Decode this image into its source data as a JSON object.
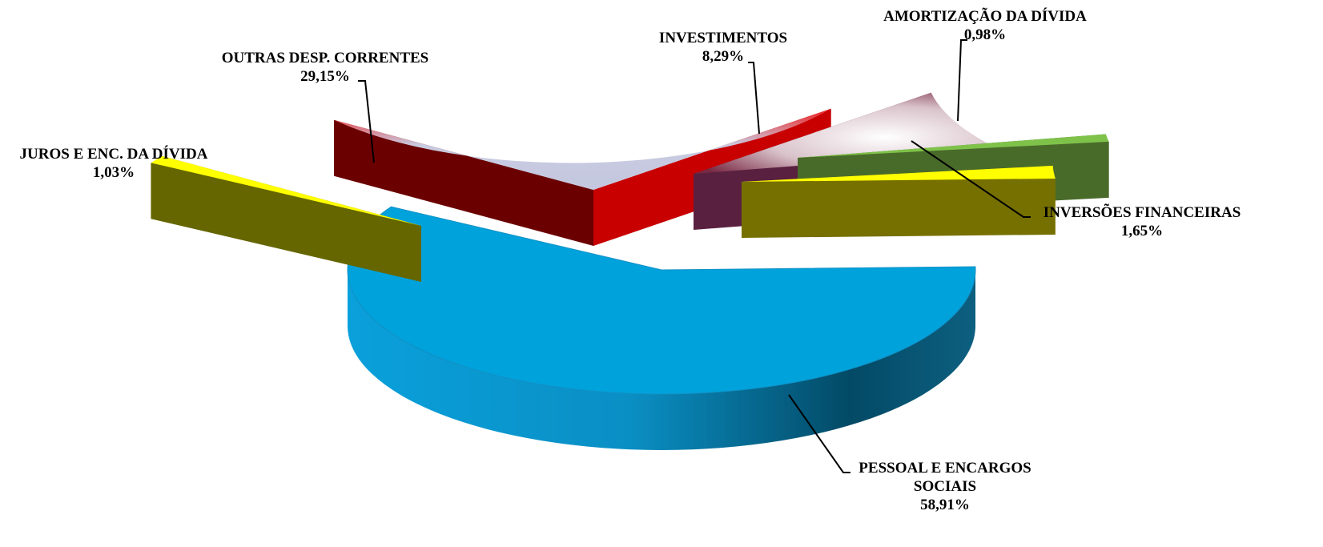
{
  "chart_data": {
    "type": "pie",
    "style": "3d-exploded",
    "slices": [
      {
        "label": "PESSOAL E ENCARGOS SOCIAIS",
        "label_lines": [
          "PESSOAL E ENCARGOS",
          "SOCIAIS"
        ],
        "value_text": "58,91%",
        "value": 58.91,
        "color": "#00a2dc"
      },
      {
        "label": "JUROS E ENC. DA DÍVIDA",
        "label_lines": [
          "JUROS E ENC. DA DÍVIDA"
        ],
        "value_text": "1,03%",
        "value": 1.03,
        "color": "#ffff00"
      },
      {
        "label": "OUTRAS DESP. CORRENTES",
        "label_lines": [
          "OUTRAS DESP. CORRENTES"
        ],
        "value_text": "29,15%",
        "value": 29.15,
        "color": "#e51f1f"
      },
      {
        "label": "INVESTIMENTOS",
        "label_lines": [
          "INVESTIMENTOS"
        ],
        "value_text": "8,29%",
        "value": 8.29,
        "color": "#7a2a44"
      },
      {
        "label": "AMORTIZAÇÃO DA DÍVIDA",
        "label_lines": [
          "AMORTIZAÇÃO DA DÍVIDA"
        ],
        "value_text": "0,98%",
        "value": 0.98,
        "color": "#7fc24a"
      },
      {
        "label": "INVERSÕES FINANCEIRAS",
        "label_lines": [
          "INVERSÕES FINANCEIRAS"
        ],
        "value_text": "1,65%",
        "value": 1.65,
        "color": "#ffff00"
      }
    ],
    "legend": "none"
  }
}
